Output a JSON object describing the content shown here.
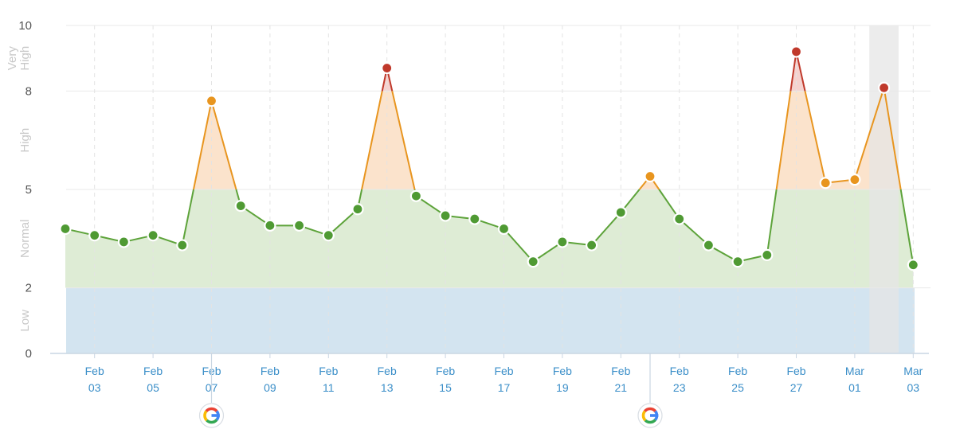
{
  "chart_data": {
    "type": "area",
    "title": "",
    "xlabel": "",
    "ylabel": "",
    "ylim": [
      0,
      10
    ],
    "y_ticks": [
      "0",
      "2",
      "5",
      "8",
      "10"
    ],
    "zones": [
      {
        "label": "Low",
        "from": 0,
        "to": 2,
        "color": "#d3e4f0"
      },
      {
        "label": "Normal",
        "from": 2,
        "to": 5,
        "color": "#deecd5"
      },
      {
        "label": "High",
        "from": 5,
        "to": 8,
        "color": "#fbe3cc"
      },
      {
        "label": "Very High",
        "from": 8,
        "to": 10,
        "color": "#f5d2cf"
      }
    ],
    "x_ticks": [
      {
        "m": "Feb",
        "d": "03",
        "i": 1
      },
      {
        "m": "Feb",
        "d": "05",
        "i": 3
      },
      {
        "m": "Feb",
        "d": "07",
        "i": 5
      },
      {
        "m": "Feb",
        "d": "09",
        "i": 7
      },
      {
        "m": "Feb",
        "d": "11",
        "i": 9
      },
      {
        "m": "Feb",
        "d": "13",
        "i": 11
      },
      {
        "m": "Feb",
        "d": "15",
        "i": 13
      },
      {
        "m": "Feb",
        "d": "17",
        "i": 15
      },
      {
        "m": "Feb",
        "d": "19",
        "i": 17
      },
      {
        "m": "Feb",
        "d": "21",
        "i": 19
      },
      {
        "m": "Feb",
        "d": "23",
        "i": 21
      },
      {
        "m": "Feb",
        "d": "25",
        "i": 23
      },
      {
        "m": "Feb",
        "d": "27",
        "i": 25
      },
      {
        "m": "Mar",
        "d": "01",
        "i": 27
      },
      {
        "m": "Mar",
        "d": "03",
        "i": 29
      }
    ],
    "dates": [
      "Feb 02",
      "Feb 03",
      "Feb 04",
      "Feb 05",
      "Feb 06",
      "Feb 07",
      "Feb 08",
      "Feb 09",
      "Feb 10",
      "Feb 11",
      "Feb 12",
      "Feb 13",
      "Feb 14",
      "Feb 15",
      "Feb 16",
      "Feb 17",
      "Feb 18",
      "Feb 19",
      "Feb 20",
      "Feb 21",
      "Feb 22",
      "Feb 23",
      "Feb 24",
      "Feb 25",
      "Feb 26",
      "Feb 27",
      "Feb 28",
      "Mar 01",
      "Mar 02",
      "Mar 03"
    ],
    "values": [
      3.8,
      3.6,
      3.4,
      3.6,
      3.3,
      7.7,
      4.5,
      3.9,
      3.9,
      3.6,
      4.4,
      8.7,
      4.8,
      4.2,
      4.1,
      3.8,
      2.8,
      3.4,
      3.3,
      4.3,
      5.4,
      4.1,
      3.3,
      2.8,
      3.0,
      9.2,
      5.2,
      5.3,
      8.1,
      2.7
    ],
    "highlight_index": 28,
    "google_update_dates": [
      {
        "i": 5,
        "icon": "google-icon"
      },
      {
        "i": 20,
        "icon": "google-icon"
      }
    ],
    "colors": {
      "normal_point": "#4f9a33",
      "high_point": "#e8951f",
      "very_high_point": "#c0392b",
      "normal_line": "#5da33a",
      "high_line": "#e8951f",
      "very_high_line": "#c0392b",
      "x_label": "#3a8ec8",
      "highlight_band": "#e6e6e6"
    }
  }
}
